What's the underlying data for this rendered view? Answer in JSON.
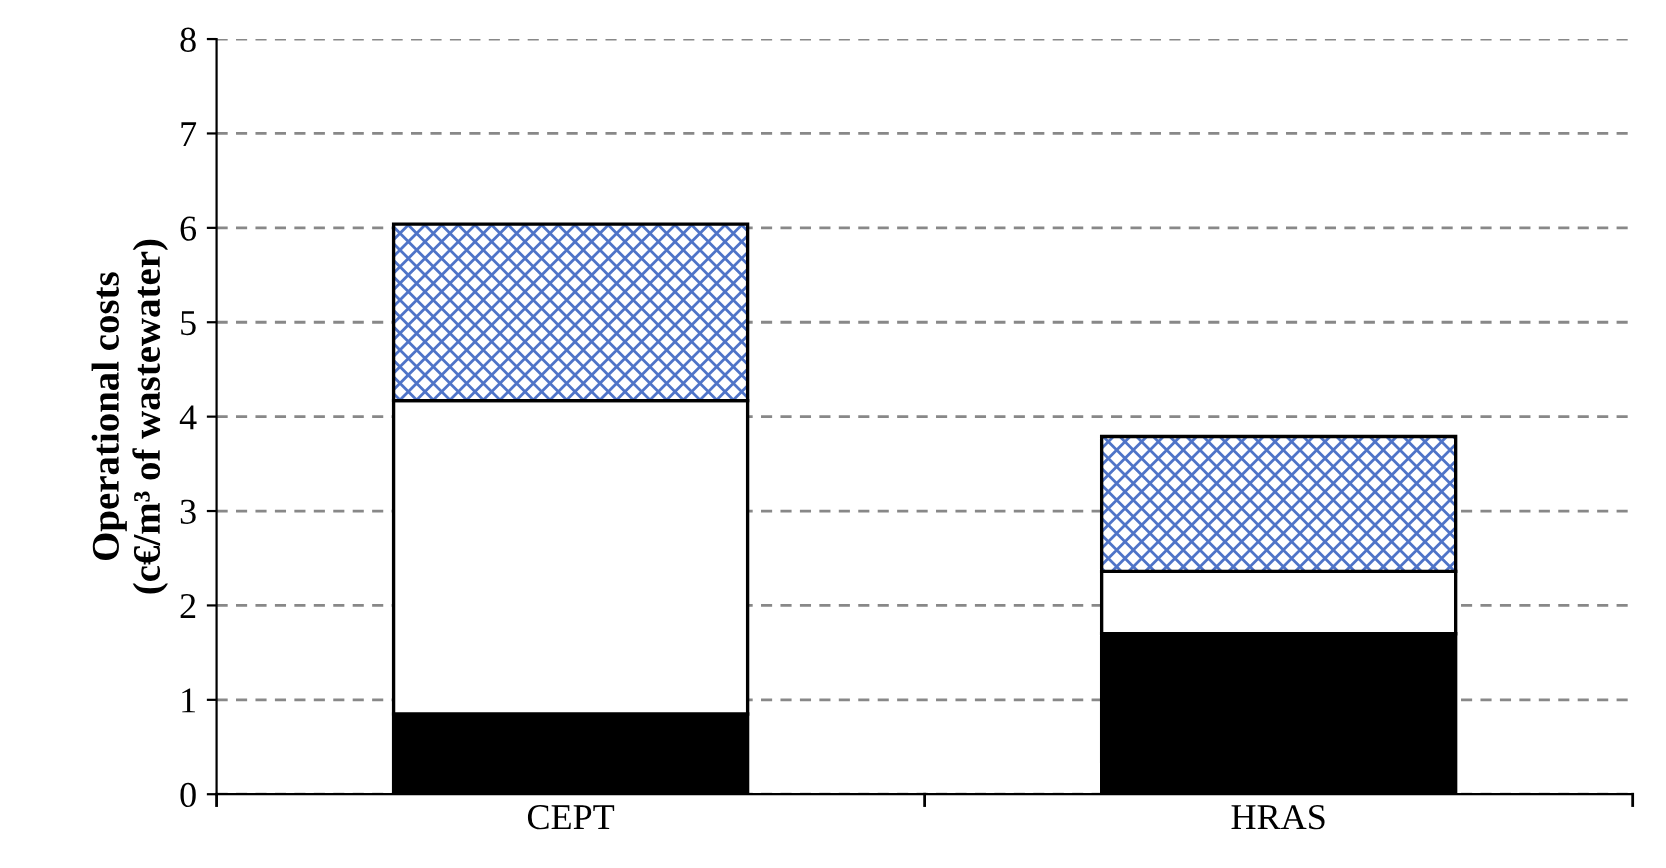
{
  "chart_data": {
    "type": "bar",
    "stacked": true,
    "ylabel": "Operational costs\n(c€/m³ of wastewater)",
    "categories": [
      "CEPT",
      "HRAS"
    ],
    "series": [
      {
        "color": "#000000",
        "values": [
          0.85,
          1.7
        ]
      },
      {
        "color": "#ffffff",
        "values": [
          3.32,
          0.66
        ]
      },
      {
        "color": "#4f74c8",
        "values": [
          1.87,
          1.43
        ]
      }
    ],
    "ylim": [
      0,
      8
    ],
    "yticks": [
      0,
      1,
      2,
      3,
      4,
      5,
      6,
      7,
      8
    ],
    "grid": "y",
    "legend": false
  }
}
